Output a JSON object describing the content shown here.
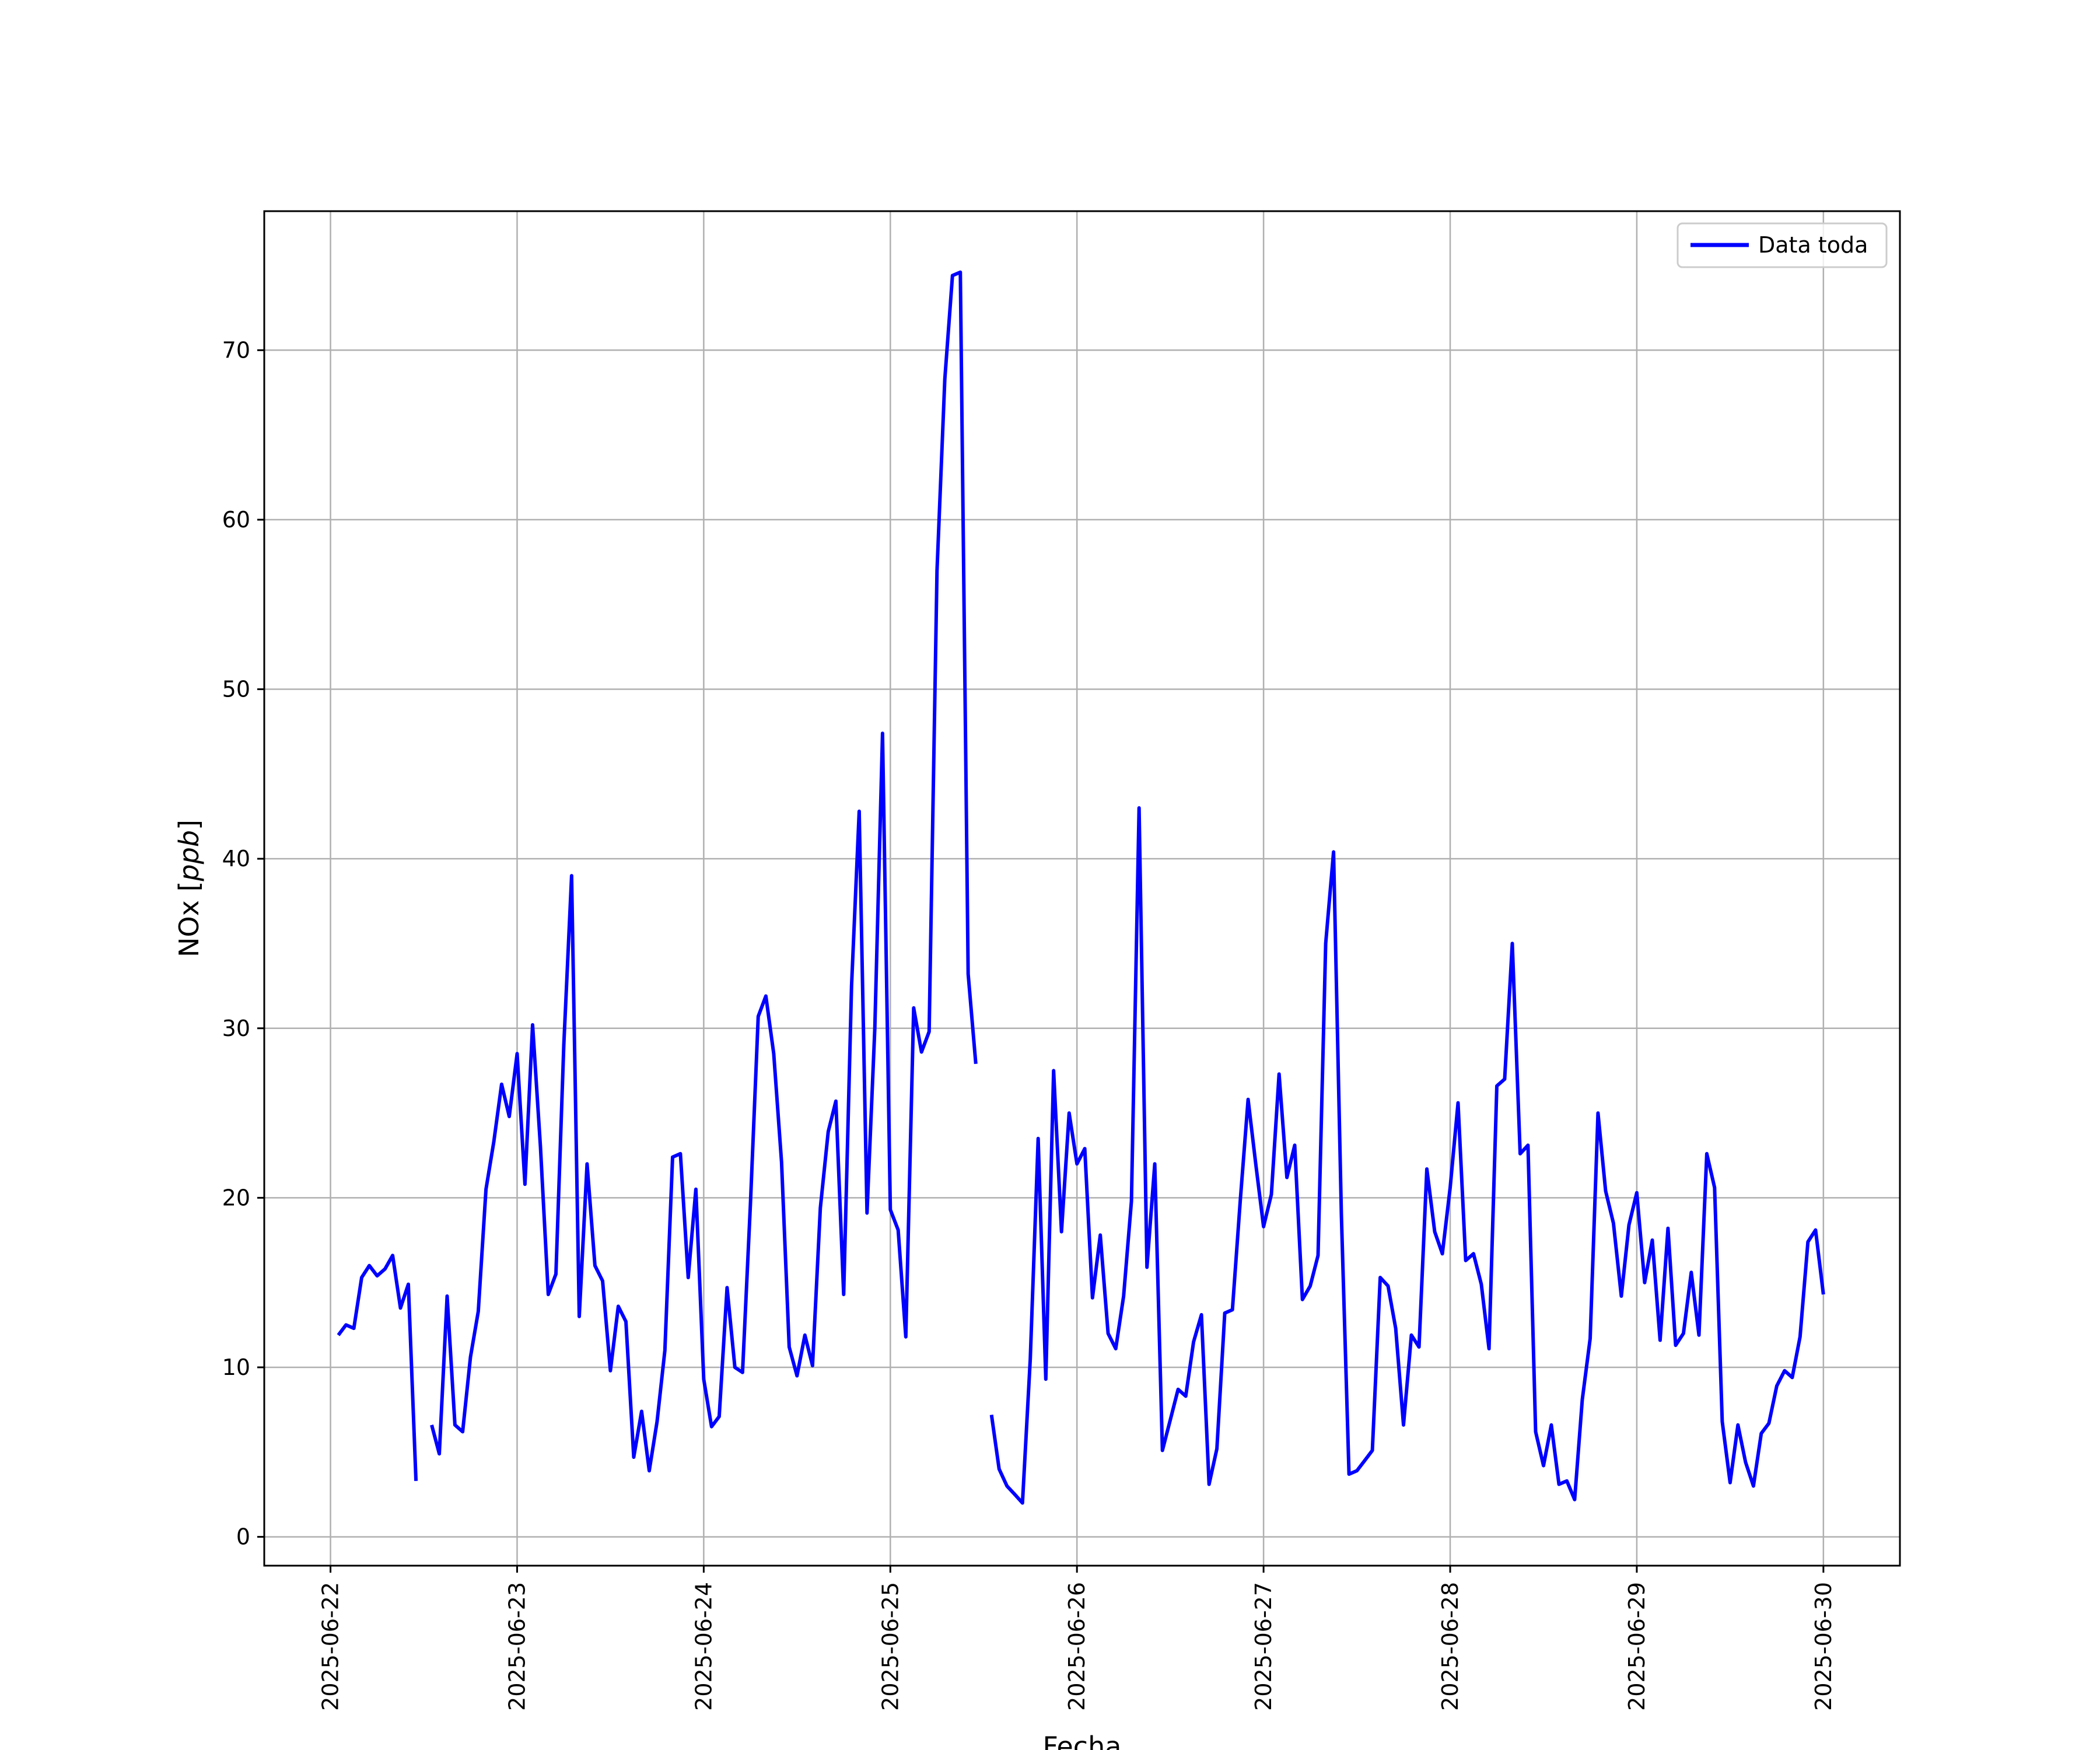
{
  "chart_data": {
    "type": "line",
    "title": "",
    "xlabel": "Fecha",
    "ylabel_main": "NOx [",
    "ylabel_unit": "ppb",
    "ylabel_close": "]",
    "ylim": [
      -1.7,
      78.2
    ],
    "xlim": [
      -0.355,
      8.41
    ],
    "grid": true,
    "legend_position": "top-right",
    "line_color": "#0000ff",
    "yticks": [
      0,
      10,
      20,
      30,
      40,
      50,
      60,
      70
    ],
    "xticks": [
      {
        "pos": 0,
        "label": "2025-06-22"
      },
      {
        "pos": 1,
        "label": "2025-06-23"
      },
      {
        "pos": 2,
        "label": "2025-06-24"
      },
      {
        "pos": 3,
        "label": "2025-06-25"
      },
      {
        "pos": 4,
        "label": "2025-06-26"
      },
      {
        "pos": 5,
        "label": "2025-06-27"
      },
      {
        "pos": 6,
        "label": "2025-06-28"
      },
      {
        "pos": 7,
        "label": "2025-06-29"
      },
      {
        "pos": 8,
        "label": "2025-06-30"
      }
    ],
    "series": [
      {
        "name": "Data toda",
        "segments": [
          {
            "x": [
              0.042,
              0.083,
              0.125,
              0.167,
              0.208,
              0.25,
              0.292,
              0.333,
              0.375,
              0.417,
              0.458
            ],
            "y": [
              11.9,
              12.5,
              12.3,
              15.3,
              16.0,
              15.4,
              15.8,
              16.6,
              13.5,
              14.9,
              3.3
            ]
          },
          {
            "x": [
              0.542,
              0.583,
              0.625,
              0.667,
              0.708,
              0.75,
              0.792,
              0.833,
              0.875,
              0.917,
              0.958,
              1.0,
              1.042,
              1.083,
              1.125,
              1.167,
              1.208,
              1.25,
              1.292,
              1.333,
              1.375,
              1.417,
              1.458,
              1.5,
              1.542,
              1.583,
              1.625,
              1.667,
              1.708,
              1.75,
              1.792,
              1.833,
              1.875,
              1.917,
              1.958,
              2.0,
              2.042,
              2.083,
              2.125,
              2.167,
              2.208,
              2.25,
              2.292,
              2.333,
              2.375,
              2.417,
              2.458,
              2.5,
              2.542,
              2.583,
              2.625,
              2.667,
              2.708,
              2.75,
              2.792,
              2.833,
              2.875,
              2.917,
              2.958,
              3.0,
              3.042,
              3.083,
              3.125,
              3.167,
              3.208,
              3.25,
              3.292,
              3.333,
              3.375,
              3.417,
              3.458
            ],
            "y": [
              6.6,
              4.9,
              14.2,
              6.6,
              6.2,
              10.6,
              13.3,
              20.5,
              23.3,
              26.7,
              24.8,
              28.5,
              20.8,
              30.2,
              23.0,
              14.3,
              15.5,
              29.0,
              39.0,
              13.0,
              22.0,
              16.0,
              15.1,
              9.8,
              13.6,
              12.7,
              4.7,
              7.4,
              3.9,
              6.8,
              11.0,
              22.4,
              22.6,
              15.3,
              20.5,
              9.3,
              6.5,
              7.1,
              14.7,
              10.0,
              9.7,
              19.6,
              30.7,
              31.9,
              28.5,
              22.1,
              11.2,
              9.5,
              11.9,
              10.1,
              19.4,
              23.9,
              25.7,
              14.3,
              32.5,
              42.8,
              19.1,
              30.0,
              47.4,
              19.3,
              18.1,
              11.8,
              31.2,
              28.6,
              29.8,
              57.0,
              68.3,
              74.4,
              74.6,
              33.2,
              27.9
            ]
          },
          {
            "x": [
              3.542,
              3.583,
              3.625,
              3.667,
              3.708,
              3.75,
              3.792,
              3.833,
              3.875,
              3.917,
              3.958,
              4.0,
              4.042,
              4.083,
              4.125,
              4.167,
              4.208,
              4.25,
              4.292,
              4.333,
              4.375,
              4.417,
              4.458,
              4.5,
              4.542,
              4.583,
              4.625,
              4.667,
              4.708,
              4.75,
              4.792,
              4.833,
              4.875,
              4.917,
              4.958,
              5.0,
              5.042,
              5.083,
              5.125,
              5.167,
              5.208,
              5.25,
              5.292,
              5.333,
              5.375,
              5.417,
              5.458,
              5.5,
              5.542,
              5.583,
              5.625,
              5.667,
              5.708,
              5.75,
              5.792,
              5.833,
              5.875,
              5.917,
              5.958,
              6.0,
              6.042,
              6.083,
              6.125,
              6.167,
              6.208,
              6.25,
              6.292,
              6.333,
              6.375,
              6.417,
              6.458,
              6.5,
              6.542,
              6.583,
              6.625,
              6.667,
              6.708,
              6.75,
              6.792,
              6.833,
              6.875,
              6.917,
              6.958,
              7.0,
              7.042,
              7.083,
              7.125,
              7.167,
              7.208,
              7.25,
              7.292,
              7.333,
              7.375,
              7.417,
              7.458,
              7.5,
              7.542,
              7.583,
              7.625,
              7.667,
              7.708,
              7.75,
              7.792,
              7.833,
              7.875,
              7.917,
              7.958,
              8.0
            ],
            "y": [
              7.2,
              4.0,
              3.0,
              2.5,
              2.0,
              10.5,
              23.5,
              9.3,
              27.5,
              18.0,
              25.0,
              22.0,
              22.9,
              14.1,
              17.8,
              12.0,
              11.1,
              14.2,
              19.8,
              43.0,
              15.9,
              22.0,
              5.1,
              6.9,
              8.7,
              8.3,
              11.5,
              13.1,
              3.1,
              5.2,
              13.2,
              13.4,
              19.8,
              25.8,
              22.0,
              18.3,
              20.2,
              27.3,
              21.2,
              23.1,
              14.0,
              14.8,
              16.6,
              35.0,
              40.4,
              19.0,
              3.7,
              3.9,
              4.5,
              5.1,
              15.3,
              14.8,
              12.3,
              6.6,
              11.9,
              11.2,
              21.7,
              18.0,
              16.7,
              20.6,
              25.6,
              16.3,
              16.7,
              14.9,
              11.1,
              26.6,
              27.0,
              35.0,
              22.6,
              23.1,
              6.2,
              4.2,
              6.6,
              3.1,
              3.3,
              2.2,
              8.1,
              11.7,
              25.0,
              20.4,
              18.5,
              14.2,
              18.4,
              20.3,
              15.0,
              17.5,
              11.6,
              18.2,
              11.3,
              12.0,
              15.6,
              11.9,
              22.6,
              20.6,
              6.8,
              3.2,
              6.6,
              4.4,
              3.0,
              6.1,
              6.7,
              8.9,
              9.8,
              9.4,
              11.8,
              17.4,
              18.1,
              14.3
            ]
          }
        ]
      }
    ]
  }
}
